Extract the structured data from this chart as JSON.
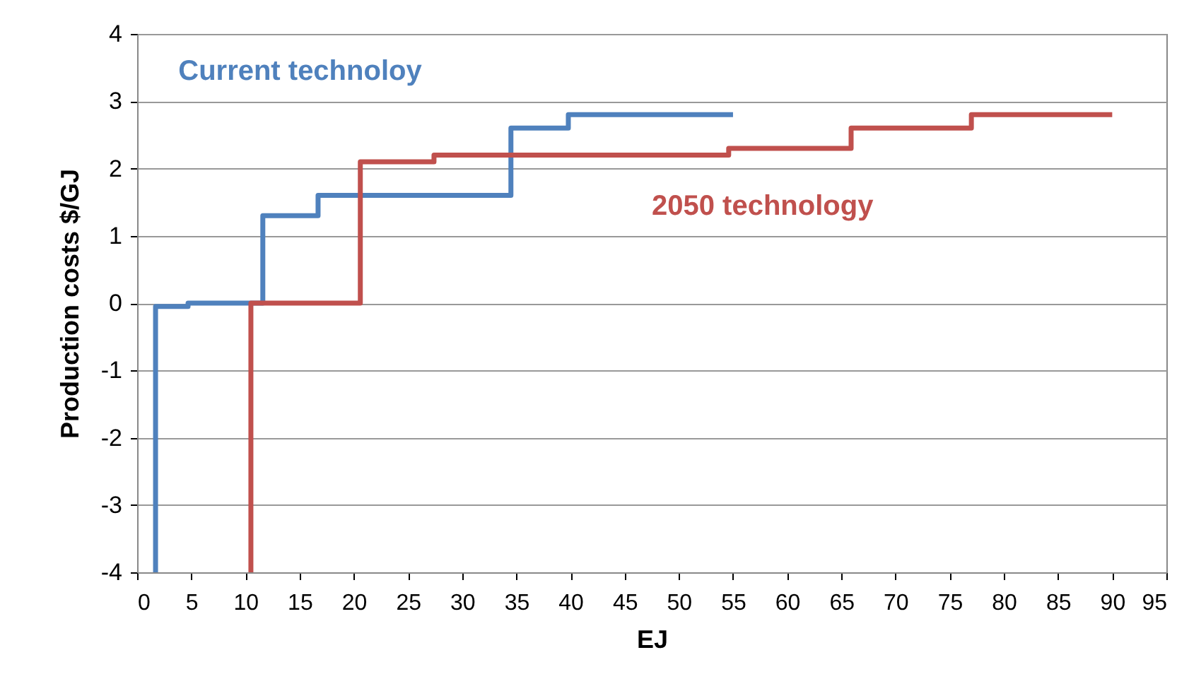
{
  "chart_data": {
    "type": "step",
    "xlabel": "EJ",
    "ylabel": "Production costs $/GJ",
    "xlim": [
      0,
      95
    ],
    "xticks": [
      0,
      5,
      10,
      15,
      20,
      25,
      30,
      35,
      40,
      45,
      50,
      55,
      60,
      65,
      70,
      75,
      80,
      85,
      90,
      95
    ],
    "ylim": [
      -4,
      4
    ],
    "yticks": [
      -4,
      -3,
      -2,
      -1,
      0,
      1,
      2,
      3,
      4
    ],
    "grid": "y",
    "legend": false,
    "marker": "none",
    "line_style": "solid",
    "series": [
      {
        "name": "Current technoloy",
        "color": "#4f81bd",
        "x": [
          1.7,
          1.7,
          4.7,
          11.6,
          16.7,
          34.5,
          39.8,
          55
        ],
        "values": [
          -4,
          -0.05,
          0,
          1.3,
          1.6,
          2.6,
          2.8,
          2.8
        ]
      },
      {
        "name": "2050 technology",
        "color": "#c0504d",
        "x": [
          10.5,
          10.5,
          20.6,
          27.4,
          54.6,
          65.9,
          77,
          90
        ],
        "values": [
          -4,
          0,
          2.1,
          2.2,
          2.3,
          2.6,
          2.8,
          2.8
        ]
      }
    ]
  }
}
